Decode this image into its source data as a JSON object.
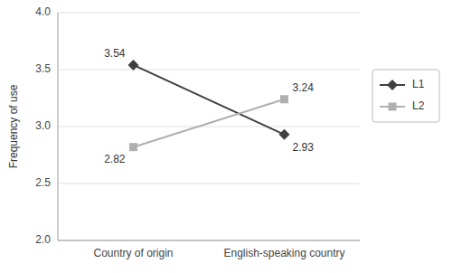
{
  "chart_data": {
    "type": "line",
    "categories": [
      "Country of origin",
      "English-speaking country"
    ],
    "series": [
      {
        "name": "L1",
        "color": "#404040",
        "marker": "diamond",
        "values": [
          3.54,
          2.93
        ]
      },
      {
        "name": "L2",
        "color": "#b0b0b0",
        "marker": "square",
        "values": [
          2.82,
          3.24
        ]
      }
    ],
    "y_label": "Frequency of use",
    "ylim": [
      2,
      4
    ],
    "yticks": [
      {
        "value": 2,
        "label": "2.0"
      },
      {
        "value": 2.5,
        "label": "2.5"
      },
      {
        "value": 3,
        "label": "3.0"
      },
      {
        "value": 3.5,
        "label": "3.5"
      },
      {
        "value": 4,
        "label": "4.0"
      }
    ],
    "grid": true,
    "legend": "right",
    "data_labels": true
  }
}
